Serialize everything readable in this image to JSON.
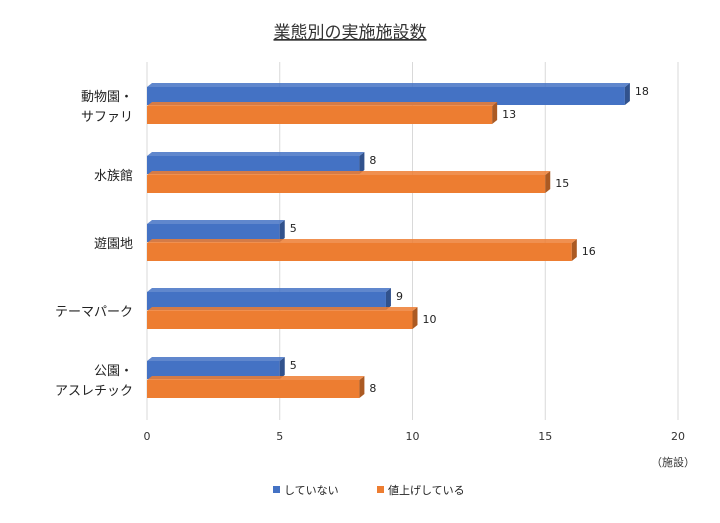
{
  "chart_data": {
    "type": "bar",
    "orientation": "horizontal",
    "title": "業態別の実施施設数",
    "categories": [
      [
        "動物園・",
        "サファリ"
      ],
      [
        "水族館"
      ],
      [
        "遊園地"
      ],
      [
        "テーマパーク"
      ],
      [
        "公園・",
        "アスレチック"
      ]
    ],
    "series": [
      {
        "name": "していない",
        "values": [
          18,
          8,
          5,
          9,
          5
        ],
        "color": "#4472C4"
      },
      {
        "name": "値上げしている",
        "values": [
          13,
          15,
          16,
          10,
          8
        ],
        "color": "#ED7D31"
      }
    ],
    "xlim": [
      0,
      20
    ],
    "xticks": [
      0,
      5,
      10,
      15,
      20
    ],
    "unit_label": "（施設）",
    "grid": true,
    "legend_position": "bottom"
  }
}
